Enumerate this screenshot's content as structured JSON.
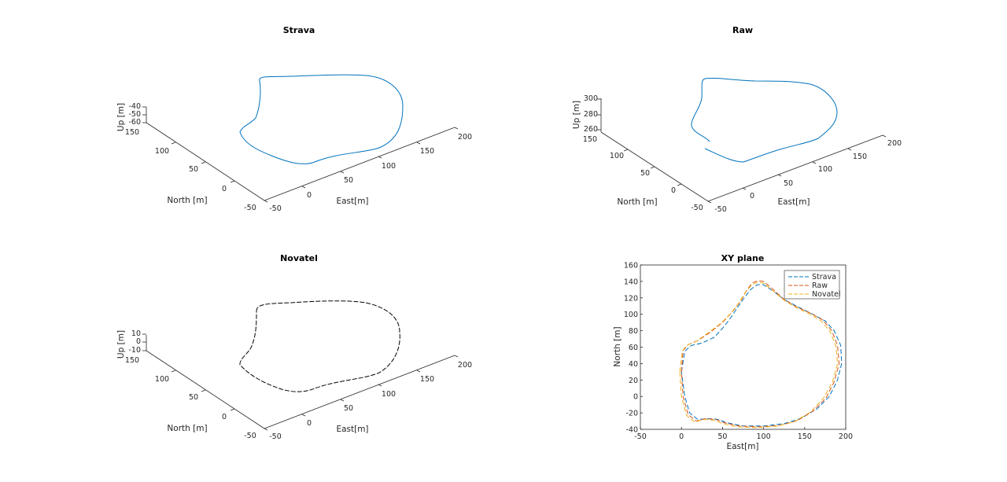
{
  "chart_data": [
    {
      "type": "line3d",
      "title": "Strava",
      "xlabel": "East[m]",
      "ylabel": "North [m]",
      "zlabel": "Up [m]",
      "x_ticks": [
        "-50",
        "0",
        "50",
        "100",
        "150",
        "200"
      ],
      "y_ticks": [
        "-50",
        "0",
        "50",
        "100",
        "150"
      ],
      "z_ticks": [
        "-60",
        "-50",
        "-40"
      ],
      "xlim": [
        -50,
        200
      ],
      "ylim": [
        -50,
        150
      ],
      "zlim": [
        -60,
        -40
      ],
      "color": "#0072bd",
      "linestyle": "solid"
    },
    {
      "type": "line3d",
      "title": "Raw",
      "xlabel": "East[m]",
      "ylabel": "North [m]",
      "zlabel": "Up [m]",
      "x_ticks": [
        "-50",
        "0",
        "50",
        "100",
        "150",
        "200"
      ],
      "y_ticks": [
        "-50",
        "0",
        "50",
        "100",
        "150"
      ],
      "z_ticks": [
        "260",
        "280",
        "300"
      ],
      "xlim": [
        -50,
        200
      ],
      "ylim": [
        -50,
        150
      ],
      "zlim": [
        260,
        300
      ],
      "color": "#0072bd",
      "linestyle": "solid"
    },
    {
      "type": "line3d",
      "title": "Novatel",
      "xlabel": "East[m]",
      "ylabel": "North [m]",
      "zlabel": "Up [m]",
      "x_ticks": [
        "-50",
        "0",
        "50",
        "100",
        "150",
        "200"
      ],
      "y_ticks": [
        "-50",
        "0",
        "50",
        "100",
        "150"
      ],
      "z_ticks": [
        "-10",
        "0",
        "10"
      ],
      "xlim": [
        -50,
        200
      ],
      "ylim": [
        -50,
        150
      ],
      "zlim": [
        -10,
        10
      ],
      "color": "#000000",
      "linestyle": "dashed"
    },
    {
      "type": "line",
      "title": "XY plane",
      "xlabel": "East[m]",
      "ylabel": "North [m]",
      "xlim": [
        -50,
        200
      ],
      "ylim": [
        -40,
        160
      ],
      "x_ticks": [
        "-50",
        "0",
        "50",
        "100",
        "150",
        "200"
      ],
      "y_ticks": [
        "-40",
        "-20",
        "0",
        "20",
        "40",
        "60",
        "80",
        "100",
        "120",
        "140",
        "160"
      ],
      "legend": "top-right",
      "series": [
        {
          "name": "Strava",
          "color": "#0072bd",
          "linestyle": "dashed",
          "x": [
            0,
            4,
            12,
            25,
            40,
            50,
            58,
            66,
            75,
            84,
            92,
            100,
            112,
            125,
            140,
            160,
            175,
            186,
            194,
            195,
            190,
            180,
            165,
            145,
            125,
            100,
            75,
            55,
            45,
            35,
            20,
            10,
            4,
            0
          ],
          "y": [
            30,
            55,
            62,
            65,
            72,
            83,
            93,
            105,
            118,
            130,
            136,
            136,
            128,
            118,
            110,
            100,
            92,
            80,
            62,
            40,
            20,
            0,
            -15,
            -27,
            -33,
            -36,
            -36,
            -32,
            -28,
            -27,
            -28,
            -20,
            0,
            30
          ]
        },
        {
          "name": "Raw",
          "color": "#d95319",
          "linestyle": "dashed",
          "x": [
            0,
            2,
            8,
            20,
            35,
            50,
            62,
            72,
            80,
            86,
            93,
            100,
            112,
            125,
            140,
            158,
            172,
            183,
            190,
            192,
            186,
            176,
            160,
            140,
            120,
            95,
            70,
            52,
            42,
            30,
            18,
            8,
            2,
            0
          ],
          "y": [
            30,
            56,
            63,
            68,
            78,
            90,
            103,
            116,
            130,
            138,
            141,
            140,
            130,
            118,
            109,
            101,
            93,
            80,
            62,
            40,
            18,
            -2,
            -18,
            -30,
            -35,
            -37,
            -36,
            -32,
            -28,
            -27,
            -30,
            -22,
            0,
            30
          ]
        },
        {
          "name": "Novatel",
          "color": "#edb120",
          "linestyle": "dashed",
          "x": [
            -2,
            1,
            6,
            18,
            32,
            48,
            60,
            70,
            78,
            85,
            92,
            100,
            112,
            125,
            140,
            157,
            170,
            181,
            188,
            190,
            184,
            173,
            157,
            137,
            117,
            92,
            68,
            50,
            40,
            28,
            16,
            6,
            0,
            -2
          ],
          "y": [
            30,
            55,
            62,
            67,
            77,
            89,
            101,
            114,
            127,
            135,
            139,
            138,
            128,
            117,
            108,
            100,
            92,
            79,
            61,
            40,
            18,
            -2,
            -19,
            -31,
            -36,
            -38,
            -37,
            -33,
            -29,
            -28,
            -31,
            -23,
            0,
            30
          ]
        }
      ]
    }
  ]
}
